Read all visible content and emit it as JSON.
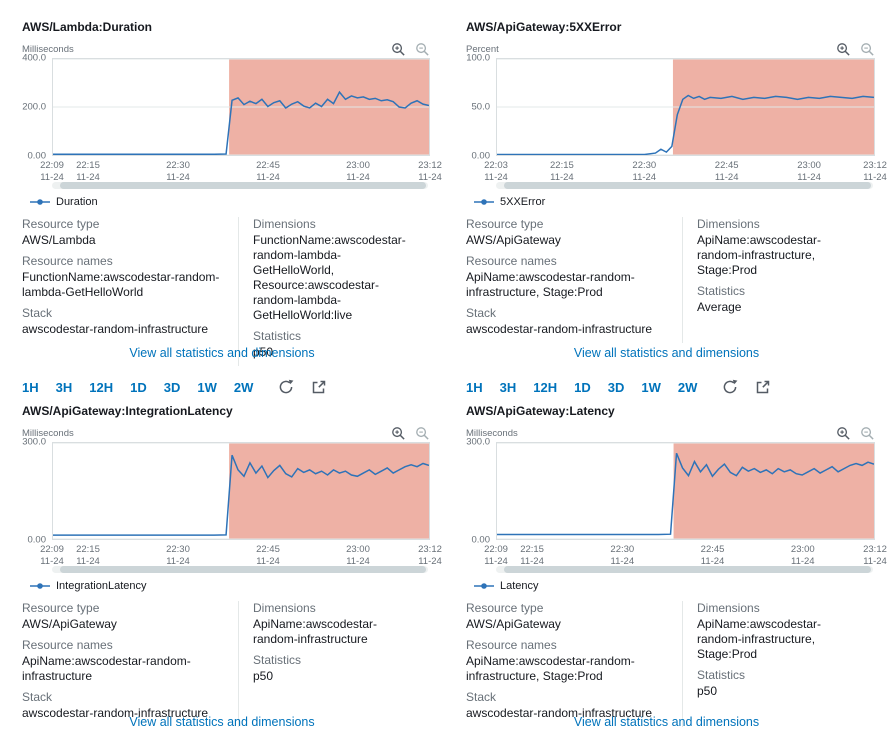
{
  "link_label": "View all statistics and dimensions",
  "toolbar": {
    "ranges": [
      "1H",
      "3H",
      "12H",
      "1D",
      "3D",
      "1W",
      "2W"
    ]
  },
  "colors": {
    "accent_link": "#0073bb",
    "series_line": "#2e73b8",
    "alarm_fill": "#d13212",
    "label_gray": "#687078",
    "text": "#16191f"
  },
  "chart_data": [
    {
      "type": "line",
      "title": "AWS/Lambda:Duration",
      "ylabel": "Milliseconds",
      "ylim": [
        0,
        400
      ],
      "y_tick_labels": [
        "400.0",
        "200.0",
        "0.00"
      ],
      "x_span_minutes": 63,
      "x_ticks": [
        {
          "time": "22:09",
          "date": "11-24",
          "m": 0
        },
        {
          "time": "22:15",
          "date": "11-24",
          "m": 6
        },
        {
          "time": "22:30",
          "date": "11-24",
          "m": 21
        },
        {
          "time": "22:45",
          "date": "11-24",
          "m": 36
        },
        {
          "time": "23:00",
          "date": "11-24",
          "m": 51
        },
        {
          "time": "23:12",
          "date": "11-24",
          "m": 63
        }
      ],
      "alarm_region": {
        "from_minute": 29.5,
        "to_minute": 63,
        "color": "#d13212"
      },
      "series": [
        {
          "name": "Duration",
          "points": [
            [
              0,
              3
            ],
            [
              3,
              3
            ],
            [
              6,
              3
            ],
            [
              9,
              3
            ],
            [
              12,
              3
            ],
            [
              15,
              3
            ],
            [
              18,
              3
            ],
            [
              21,
              3
            ],
            [
              24,
              3
            ],
            [
              27,
              3
            ],
            [
              29,
              4
            ],
            [
              30,
              228
            ],
            [
              31,
              238
            ],
            [
              32,
              210
            ],
            [
              33,
              224
            ],
            [
              34,
              214
            ],
            [
              35,
              232
            ],
            [
              36,
              202
            ],
            [
              37,
              218
            ],
            [
              38,
              226
            ],
            [
              39,
              196
            ],
            [
              40,
              212
            ],
            [
              41,
              222
            ],
            [
              42,
              204
            ],
            [
              43,
              196
            ],
            [
              44,
              216
            ],
            [
              45,
              202
            ],
            [
              46,
              232
            ],
            [
              47,
              214
            ],
            [
              48,
              262
            ],
            [
              49,
              232
            ],
            [
              50,
              246
            ],
            [
              51,
              238
            ],
            [
              52,
              242
            ],
            [
              53,
              232
            ],
            [
              54,
              236
            ],
            [
              55,
              226
            ],
            [
              56,
              230
            ],
            [
              57,
              222
            ],
            [
              58,
              200
            ],
            [
              59,
              196
            ],
            [
              60,
              216
            ],
            [
              61,
              226
            ],
            [
              62,
              212
            ],
            [
              63,
              206
            ]
          ]
        }
      ]
    },
    {
      "type": "line",
      "title": "AWS/ApiGateway:5XXError",
      "ylabel": "Percent",
      "ylim": [
        0,
        100
      ],
      "y_tick_labels": [
        "100.0",
        "50.0",
        "0.00"
      ],
      "x_span_minutes": 69,
      "x_ticks": [
        {
          "time": "22:03",
          "date": "11-24",
          "m": 0
        },
        {
          "time": "22:15",
          "date": "11-24",
          "m": 12
        },
        {
          "time": "22:30",
          "date": "11-24",
          "m": 27
        },
        {
          "time": "22:45",
          "date": "11-24",
          "m": 42
        },
        {
          "time": "23:00",
          "date": "11-24",
          "m": 57
        },
        {
          "time": "23:12",
          "date": "11-24",
          "m": 69
        }
      ],
      "alarm_region": {
        "from_minute": 32.2,
        "to_minute": 69,
        "color": "#d13212"
      },
      "series": [
        {
          "name": "5XXError",
          "points": [
            [
              0,
              0.5
            ],
            [
              4,
              0.5
            ],
            [
              8,
              0.5
            ],
            [
              12,
              0.5
            ],
            [
              16,
              0.5
            ],
            [
              20,
              0.5
            ],
            [
              24,
              0.5
            ],
            [
              27,
              0.5
            ],
            [
              29,
              2
            ],
            [
              30,
              6
            ],
            [
              31,
              3
            ],
            [
              32,
              9
            ],
            [
              33,
              42
            ],
            [
              34,
              58
            ],
            [
              35,
              62
            ],
            [
              36,
              59
            ],
            [
              37,
              61
            ],
            [
              38,
              58
            ],
            [
              39,
              60
            ],
            [
              41,
              59
            ],
            [
              43,
              61
            ],
            [
              45,
              58
            ],
            [
              47,
              60
            ],
            [
              49,
              59
            ],
            [
              51,
              61
            ],
            [
              53,
              60
            ],
            [
              55,
              58
            ],
            [
              57,
              60
            ],
            [
              59,
              59
            ],
            [
              61,
              61
            ],
            [
              63,
              60
            ],
            [
              65,
              59
            ],
            [
              67,
              61
            ],
            [
              69,
              60
            ]
          ]
        }
      ]
    },
    {
      "type": "line",
      "title": "AWS/ApiGateway:IntegrationLatency",
      "ylabel": "Milliseconds",
      "ylim": [
        0,
        300
      ],
      "y_tick_labels": [
        "300.0",
        "0.00"
      ],
      "x_span_minutes": 63,
      "x_ticks": [
        {
          "time": "22:09",
          "date": "11-24",
          "m": 0
        },
        {
          "time": "22:15",
          "date": "11-24",
          "m": 6
        },
        {
          "time": "22:30",
          "date": "11-24",
          "m": 21
        },
        {
          "time": "22:45",
          "date": "11-24",
          "m": 36
        },
        {
          "time": "23:00",
          "date": "11-24",
          "m": 51
        },
        {
          "time": "23:12",
          "date": "11-24",
          "m": 63
        }
      ],
      "alarm_region": {
        "from_minute": 29.5,
        "to_minute": 63,
        "color": "#d13212"
      },
      "series": [
        {
          "name": "IntegrationLatency",
          "points": [
            [
              0,
              12
            ],
            [
              3,
              12
            ],
            [
              6,
              12
            ],
            [
              9,
              12
            ],
            [
              12,
              12
            ],
            [
              15,
              12
            ],
            [
              18,
              12
            ],
            [
              21,
              12
            ],
            [
              24,
              12
            ],
            [
              27,
              12
            ],
            [
              29,
              13
            ],
            [
              30,
              262
            ],
            [
              31,
              216
            ],
            [
              32,
              196
            ],
            [
              33,
              238
            ],
            [
              34,
              206
            ],
            [
              35,
              228
            ],
            [
              36,
              192
            ],
            [
              37,
              214
            ],
            [
              38,
              230
            ],
            [
              39,
              204
            ],
            [
              40,
              194
            ],
            [
              41,
              220
            ],
            [
              42,
              208
            ],
            [
              43,
              216
            ],
            [
              44,
              204
            ],
            [
              45,
              212
            ],
            [
              46,
              200
            ],
            [
              47,
              216
            ],
            [
              48,
              206
            ],
            [
              49,
              212
            ],
            [
              50,
              200
            ],
            [
              51,
              196
            ],
            [
              52,
              206
            ],
            [
              53,
              216
            ],
            [
              54,
              202
            ],
            [
              55,
              212
            ],
            [
              56,
              222
            ],
            [
              57,
              206
            ],
            [
              58,
              216
            ],
            [
              59,
              226
            ],
            [
              60,
              232
            ],
            [
              61,
              226
            ],
            [
              62,
              236
            ],
            [
              63,
              230
            ]
          ]
        }
      ]
    },
    {
      "type": "line",
      "title": "AWS/ApiGateway:Latency",
      "ylabel": "Milliseconds",
      "ylim": [
        0,
        300
      ],
      "y_tick_labels": [
        "300.0",
        "0.00"
      ],
      "x_span_minutes": 63,
      "x_ticks": [
        {
          "time": "22:09",
          "date": "11-24",
          "m": 0
        },
        {
          "time": "22:15",
          "date": "11-24",
          "m": 6
        },
        {
          "time": "22:30",
          "date": "11-24",
          "m": 21
        },
        {
          "time": "22:45",
          "date": "11-24",
          "m": 36
        },
        {
          "time": "23:00",
          "date": "11-24",
          "m": 51
        },
        {
          "time": "23:12",
          "date": "11-24",
          "m": 63
        }
      ],
      "alarm_region": {
        "from_minute": 29.5,
        "to_minute": 63,
        "color": "#d13212"
      },
      "series": [
        {
          "name": "Latency",
          "points": [
            [
              0,
              14
            ],
            [
              3,
              14
            ],
            [
              6,
              14
            ],
            [
              9,
              14
            ],
            [
              12,
              14
            ],
            [
              15,
              14
            ],
            [
              18,
              14
            ],
            [
              21,
              14
            ],
            [
              24,
              14
            ],
            [
              27,
              14
            ],
            [
              29,
              15
            ],
            [
              30,
              268
            ],
            [
              31,
              222
            ],
            [
              32,
              198
            ],
            [
              33,
              242
            ],
            [
              34,
              210
            ],
            [
              35,
              232
            ],
            [
              36,
              196
            ],
            [
              37,
              218
            ],
            [
              38,
              234
            ],
            [
              39,
              208
            ],
            [
              40,
              198
            ],
            [
              41,
              224
            ],
            [
              42,
              212
            ],
            [
              43,
              220
            ],
            [
              44,
              208
            ],
            [
              45,
              216
            ],
            [
              46,
              204
            ],
            [
              47,
              220
            ],
            [
              48,
              210
            ],
            [
              49,
              216
            ],
            [
              50,
              204
            ],
            [
              51,
              200
            ],
            [
              52,
              210
            ],
            [
              53,
              220
            ],
            [
              54,
              206
            ],
            [
              55,
              216
            ],
            [
              56,
              226
            ],
            [
              57,
              210
            ],
            [
              58,
              220
            ],
            [
              59,
              230
            ],
            [
              60,
              236
            ],
            [
              61,
              230
            ],
            [
              62,
              240
            ],
            [
              63,
              234
            ]
          ]
        }
      ]
    }
  ],
  "panels": [
    {
      "details": {
        "left": [
          {
            "label": "Resource type",
            "value": "AWS/Lambda"
          },
          {
            "label": "Resource names",
            "value": "FunctionName:awscodestar-random-lambda-GetHelloWorld"
          },
          {
            "label": "Stack",
            "value": "awscodestar-random-infrastructure"
          }
        ],
        "right": [
          {
            "label": "Dimensions",
            "value": "FunctionName:awscodestar-random-lambda-GetHelloWorld, Resource:awscodestar-random-lambda-GetHelloWorld:live"
          },
          {
            "label": "Statistics",
            "value": "p50"
          }
        ]
      }
    },
    {
      "details": {
        "left": [
          {
            "label": "Resource type",
            "value": "AWS/ApiGateway"
          },
          {
            "label": "Resource names",
            "value": "ApiName:awscodestar-random-infrastructure, Stage:Prod"
          },
          {
            "label": "Stack",
            "value": "awscodestar-random-infrastructure"
          }
        ],
        "right": [
          {
            "label": "Dimensions",
            "value": "ApiName:awscodestar-random-infrastructure, Stage:Prod"
          },
          {
            "label": "Statistics",
            "value": "Average"
          }
        ]
      }
    },
    {
      "details": {
        "left": [
          {
            "label": "Resource type",
            "value": "AWS/ApiGateway"
          },
          {
            "label": "Resource names",
            "value": "ApiName:awscodestar-random-infrastructure"
          },
          {
            "label": "Stack",
            "value": "awscodestar-random-infrastructure"
          }
        ],
        "right": [
          {
            "label": "Dimensions",
            "value": "ApiName:awscodestar-random-infrastructure"
          },
          {
            "label": "Statistics",
            "value": "p50"
          }
        ]
      }
    },
    {
      "details": {
        "left": [
          {
            "label": "Resource type",
            "value": "AWS/ApiGateway"
          },
          {
            "label": "Resource names",
            "value": "ApiName:awscodestar-random-infrastructure, Stage:Prod"
          },
          {
            "label": "Stack",
            "value": "awscodestar-random-infrastructure"
          }
        ],
        "right": [
          {
            "label": "Dimensions",
            "value": "ApiName:awscodestar-random-infrastructure, Stage:Prod"
          },
          {
            "label": "Statistics",
            "value": "p50"
          }
        ]
      }
    }
  ]
}
